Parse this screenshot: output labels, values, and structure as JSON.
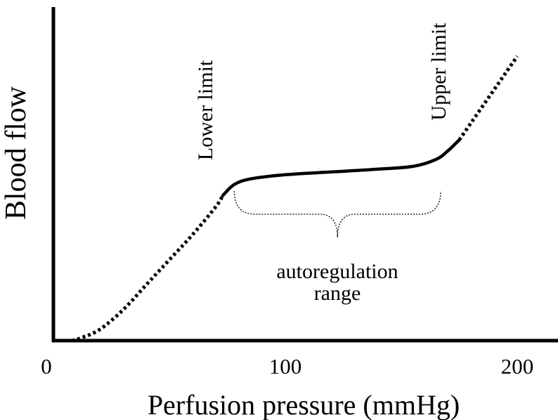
{
  "chart_data": {
    "type": "line",
    "title": "",
    "xlabel": "Perfusion pressure (mmHg)",
    "ylabel": "Blood flow",
    "xlim": [
      0,
      215
    ],
    "ylim": [
      0,
      100
    ],
    "x_ticks": [
      "0",
      "100",
      "200"
    ],
    "grid": false,
    "legend": "none",
    "series": [
      {
        "style": "dotted",
        "x": [
          8,
          12,
          20,
          30,
          40,
          50,
          60,
          70,
          73
        ],
        "y": [
          0,
          1,
          4,
          11,
          20,
          29,
          38,
          48,
          52
        ]
      },
      {
        "style": "solid",
        "x": [
          73,
          78,
          85,
          100,
          120,
          140,
          155,
          165,
          170,
          175
        ],
        "y": [
          52,
          56,
          58,
          59.5,
          60.5,
          61.5,
          62.5,
          65,
          68,
          72
        ]
      },
      {
        "style": "dotted",
        "x": [
          175,
          180,
          185,
          190,
          195,
          200
        ],
        "y": [
          72,
          78,
          84,
          90,
          96,
          102
        ]
      }
    ],
    "annotations": {
      "lower_limit": "Lower limit",
      "upper_limit": "Upper limit",
      "range_line1": "autoregulation",
      "range_line2": "range"
    },
    "brace_x_range": [
      78,
      167
    ]
  }
}
